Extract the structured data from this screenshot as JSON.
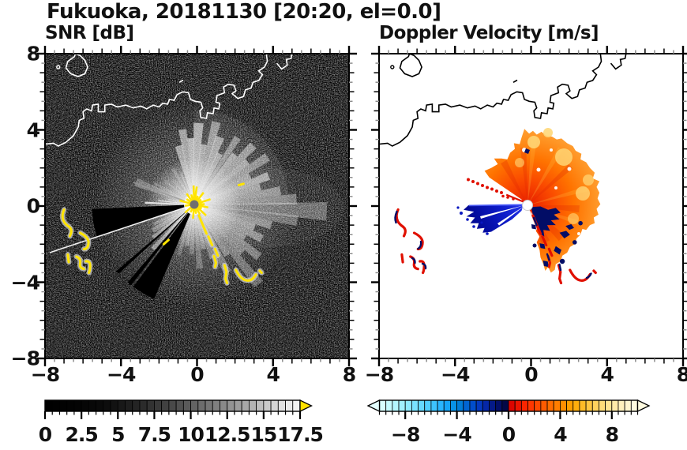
{
  "title": "Fukuoka, 20181130 [20:20, el=0.0]",
  "chart_data": [
    {
      "type": "heatmap",
      "title": "SNR [dB]",
      "panel": "left",
      "x_ticks": [
        "−8",
        "−4",
        "0",
        "4",
        "8"
      ],
      "y_ticks": [
        "8",
        "4",
        "0",
        "−4",
        "−8"
      ],
      "x_tick_values": [
        -8,
        -4,
        0,
        4,
        8
      ],
      "y_tick_values": [
        8,
        4,
        0,
        -4,
        -8
      ],
      "axis_range": [
        -8,
        8
      ],
      "minor_tick_step": 0.5,
      "background_value": "black (low SNR noise speckle)",
      "radar_center": [
        -0.15,
        0.05
      ],
      "colorbar": {
        "range": [
          0,
          17.5
        ],
        "tick_labels": [
          "0",
          "2.5",
          "5",
          "7.5",
          "10",
          "12.5",
          "15",
          "17.5"
        ],
        "tick_values": [
          0,
          2.5,
          5,
          7.5,
          10,
          12.5,
          15,
          17.5
        ],
        "block_step": 0.5,
        "colors": [
          "#000000",
          "#010101",
          "#020202",
          "#030303",
          "#040404",
          "#060606",
          "#080808",
          "#0a0a0a",
          "#0d0d0d",
          "#121212",
          "#181818",
          "#1e1e1e",
          "#242424",
          "#2b2b2b",
          "#323232",
          "#393939",
          "#414141",
          "#494949",
          "#515151",
          "#5a5a5a",
          "#636363",
          "#6c6c6c",
          "#757575",
          "#7f7f7f",
          "#898989",
          "#939393",
          "#9d9d9d",
          "#a8a8a8",
          "#b3b3b3",
          "#bebebe",
          "#c9c9c9",
          "#d5d5d5",
          "#e0e0e0",
          "#e9e9e9",
          "#f2f2f2"
        ],
        "overflow_color": "#ffe100"
      },
      "features": {
        "description": "Radial sunburst of high-SNR beams from radar at center, saturated yellow clutter at core and along a SE arc chain, yellow ground-clutter arcs at far west, two black blocked-beam wedges toward WSW and SSW, white coastline across the top.",
        "sunburst_rays": [
          [
            345,
            3.5,
            3.2,
            0.5
          ],
          [
            351,
            3,
            4.0,
            0.5
          ],
          [
            357,
            3,
            3.5,
            0.6
          ],
          [
            3,
            3.5,
            4.3,
            0.55
          ],
          [
            9,
            3,
            3.2,
            0.5
          ],
          [
            15,
            3,
            4.5,
            0.45
          ],
          [
            21,
            3.5,
            3.8,
            0.5
          ],
          [
            27,
            3,
            3.0,
            0.5
          ],
          [
            33,
            2.5,
            4.2,
            0.4
          ],
          [
            39,
            3,
            3.4,
            0.5
          ],
          [
            45,
            3,
            4.4,
            0.45
          ],
          [
            51,
            3,
            3.6,
            0.5
          ],
          [
            57,
            3,
            4.6,
            0.4
          ],
          [
            63,
            3,
            3.3,
            0.45
          ],
          [
            69,
            3,
            4.2,
            0.5
          ],
          [
            75,
            3,
            3.6,
            0.45
          ],
          [
            81,
            3,
            4.6,
            0.4
          ],
          [
            87,
            3,
            5.4,
            0.35
          ],
          [
            93,
            4,
            7.0,
            0.3
          ],
          [
            99,
            3,
            5.5,
            0.3
          ],
          [
            105,
            3,
            4.2,
            0.4
          ],
          [
            111,
            3,
            3.4,
            0.45
          ],
          [
            117,
            3,
            4.0,
            0.4
          ],
          [
            123,
            3,
            3.2,
            0.4
          ],
          [
            129,
            3,
            4.4,
            0.35
          ],
          [
            135,
            3,
            3.6,
            0.35
          ],
          [
            141,
            3,
            5.4,
            0.3
          ],
          [
            147,
            3,
            3.2,
            0.35
          ],
          [
            154,
            3,
            4.0,
            0.3
          ],
          [
            161,
            3,
            3.0,
            0.3
          ],
          [
            168,
            3,
            2.4,
            0.3
          ],
          [
            175,
            3,
            3.4,
            0.25
          ],
          [
            183,
            3,
            2.6,
            0.25
          ],
          [
            190,
            3,
            2.2,
            0.25
          ],
          [
            197,
            2.5,
            2.8,
            0.2
          ],
          [
            223,
            2,
            3.2,
            0.45
          ],
          [
            231,
            2.5,
            2.8,
            0.4
          ],
          [
            238,
            3,
            2.6,
            0.3
          ],
          [
            244,
            2,
            2.4,
            0.25
          ],
          [
            272,
            1.2,
            2.6,
            0.8
          ],
          [
            276,
            1,
            1.9,
            0.7
          ],
          [
            281,
            1,
            1.4,
            0.5
          ],
          [
            291,
            4,
            3.3,
            0.28
          ],
          [
            298,
            2,
            2.4,
            0.2
          ],
          [
            309,
            2,
            2.0,
            0.15
          ],
          [
            319,
            2,
            1.6,
            0.15
          ],
          [
            329,
            2.5,
            2.2,
            0.2
          ],
          [
            337,
            2,
            1.8,
            0.25
          ]
        ],
        "blocked_wedges_azimuth": [
          [
            203,
            216.5
          ],
          [
            218,
            220.5
          ],
          [
            227.5,
            229.5
          ],
          [
            251.8,
            267.5
          ]
        ],
        "boundary_ray_azimuth": 251.5,
        "clutter_spikes": [
          [
            8,
            0.95
          ],
          [
            22,
            0.5
          ],
          [
            38,
            0.8
          ],
          [
            55,
            0.45
          ],
          [
            72,
            0.9
          ],
          [
            88,
            0.55
          ],
          [
            102,
            0.75
          ],
          [
            118,
            0.45
          ],
          [
            133,
            0.85
          ],
          [
            150,
            0.6
          ],
          [
            168,
            0.5
          ],
          [
            185,
            0.75
          ],
          [
            205,
            0.45
          ],
          [
            228,
            0.65
          ],
          [
            262,
            0.5
          ],
          [
            285,
            0.8
          ],
          [
            305,
            0.5
          ],
          [
            325,
            0.7
          ],
          [
            343,
            0.55
          ],
          [
            358,
            1.0
          ]
        ]
      }
    },
    {
      "type": "heatmap",
      "title": "Doppler Velocity [m/s]",
      "panel": "right",
      "x_ticks": [
        "−8",
        "−4",
        "0",
        "4",
        "8"
      ],
      "x_tick_values": [
        -8,
        -4,
        0,
        4,
        8
      ],
      "axis_range": [
        -8,
        8
      ],
      "minor_tick_step": 0.5,
      "background_value": "white (no echo)",
      "radar_center": [
        -0.2,
        0.05
      ],
      "colorbar": {
        "range": [
          -10,
          10
        ],
        "tick_labels": [
          "−8",
          "−4",
          "0",
          "4",
          "8"
        ],
        "tick_values": [
          -8,
          -4,
          0,
          4,
          8
        ],
        "block_step": 0.5,
        "colors": [
          "#d8ffff",
          "#c6fbff",
          "#b4f6ff",
          "#a1f0ff",
          "#8eeaff",
          "#7ae2ff",
          "#66d9ff",
          "#51cfff",
          "#3dc3ff",
          "#29b5ff",
          "#16a5f8",
          "#0892e8",
          "#017dd8",
          "#0165d2",
          "#014ecc",
          "#0439c0",
          "#0527a8",
          "#041a88",
          "#030f68",
          "#020847",
          "#dc0500",
          "#ec1400",
          "#f92500",
          "#ff3700",
          "#ff4900",
          "#ff5b00",
          "#ff6d00",
          "#ff7e00",
          "#ff8f00",
          "#ff9f00",
          "#ffae0c",
          "#ffbb26",
          "#ffc742",
          "#ffd25e",
          "#ffdc79",
          "#ffe492",
          "#ffeba9",
          "#fff1bd",
          "#fff6cf",
          "#fffade"
        ],
        "underflow_color": "#e4ffff",
        "overflow_color": "#fffbe0"
      },
      "features": {
        "description": "Receding (positive, red-orange, ~2 to 8 m/s) echo fan from NW clockwise to SSE out to ~4 radius; approaching (negative, blue, ~-4 to -8 m/s) wedge pointing west; near-zero dark-navy patches S-SE of radar; red/navy ground-clutter arcs at far west and lower right; dotted red ray to the NW; black coastline across the top; white dot at radar site."
      }
    }
  ],
  "layout_colors": {
    "snr_clutter_yellow": "#ffe400",
    "radar_dot_gray": "#6f6f6f",
    "fan_inner_red": "#e81e00",
    "fan_outer_amber": "#ffab45",
    "approach_blue": "#2737ec",
    "near_zero_navy": "#020d66",
    "clutter_red": "#e01000"
  }
}
